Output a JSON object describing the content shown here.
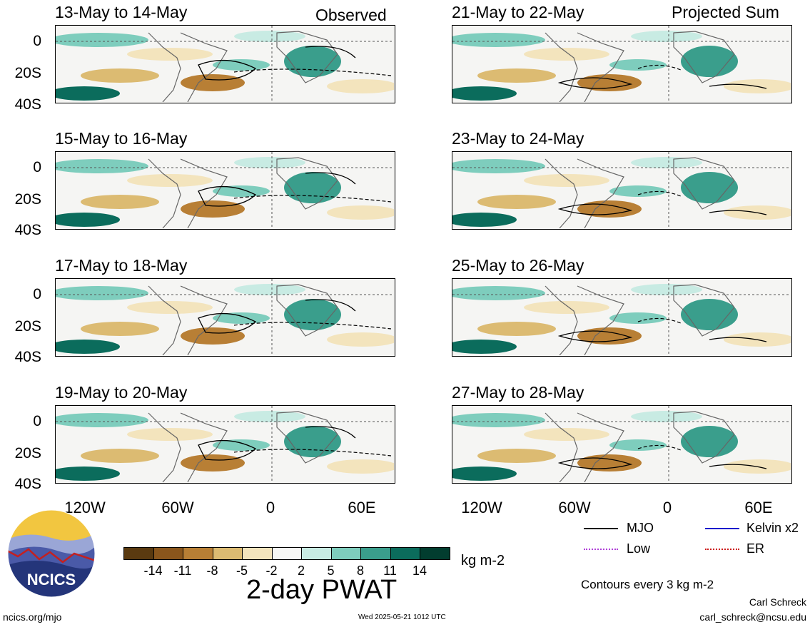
{
  "headers": {
    "left": "Observed",
    "right": "Projected Sum"
  },
  "panels_left": [
    {
      "title": "13-May to 14-May"
    },
    {
      "title": "15-May to 16-May"
    },
    {
      "title": "17-May to 18-May"
    },
    {
      "title": "19-May to 20-May"
    }
  ],
  "panels_right": [
    {
      "title": "21-May to 22-May"
    },
    {
      "title": "23-May to 24-May"
    },
    {
      "title": "25-May to 26-May"
    },
    {
      "title": "27-May to 28-May"
    }
  ],
  "y_ticks": [
    "0",
    "20S",
    "40S"
  ],
  "x_ticks": [
    "120W",
    "60W",
    "0",
    "60E"
  ],
  "colorbar": {
    "colors": [
      "#5a3a10",
      "#8a561c",
      "#b87f35",
      "#dcbb72",
      "#f3e4bd",
      "#f7f7f5",
      "#c8ebe3",
      "#7ecdbd",
      "#3a9e8c",
      "#0b6c5c",
      "#023d2f"
    ],
    "ticks": [
      "-14",
      "-11",
      "-8",
      "-5",
      "-2",
      "2",
      "5",
      "8",
      "11",
      "14"
    ],
    "units": "kg m-2",
    "title": "2-day PWAT"
  },
  "legend": {
    "mjo": "MJO",
    "kelvin": "Kelvin x2",
    "low": "Low",
    "er": "ER",
    "colors": {
      "mjo": "#000000",
      "kelvin": "#1a1acc",
      "low": "#b040d8",
      "er": "#cc1a1a"
    }
  },
  "contour_note": "Contours every 3 kg m-2",
  "author": "Carl Schreck",
  "email": "carl_schreck@ncsu.edu",
  "site": "ncics.org/mjo",
  "timestamp": "Wed 2025-05-21 1012 UTC",
  "logo_text": "NCICS"
}
